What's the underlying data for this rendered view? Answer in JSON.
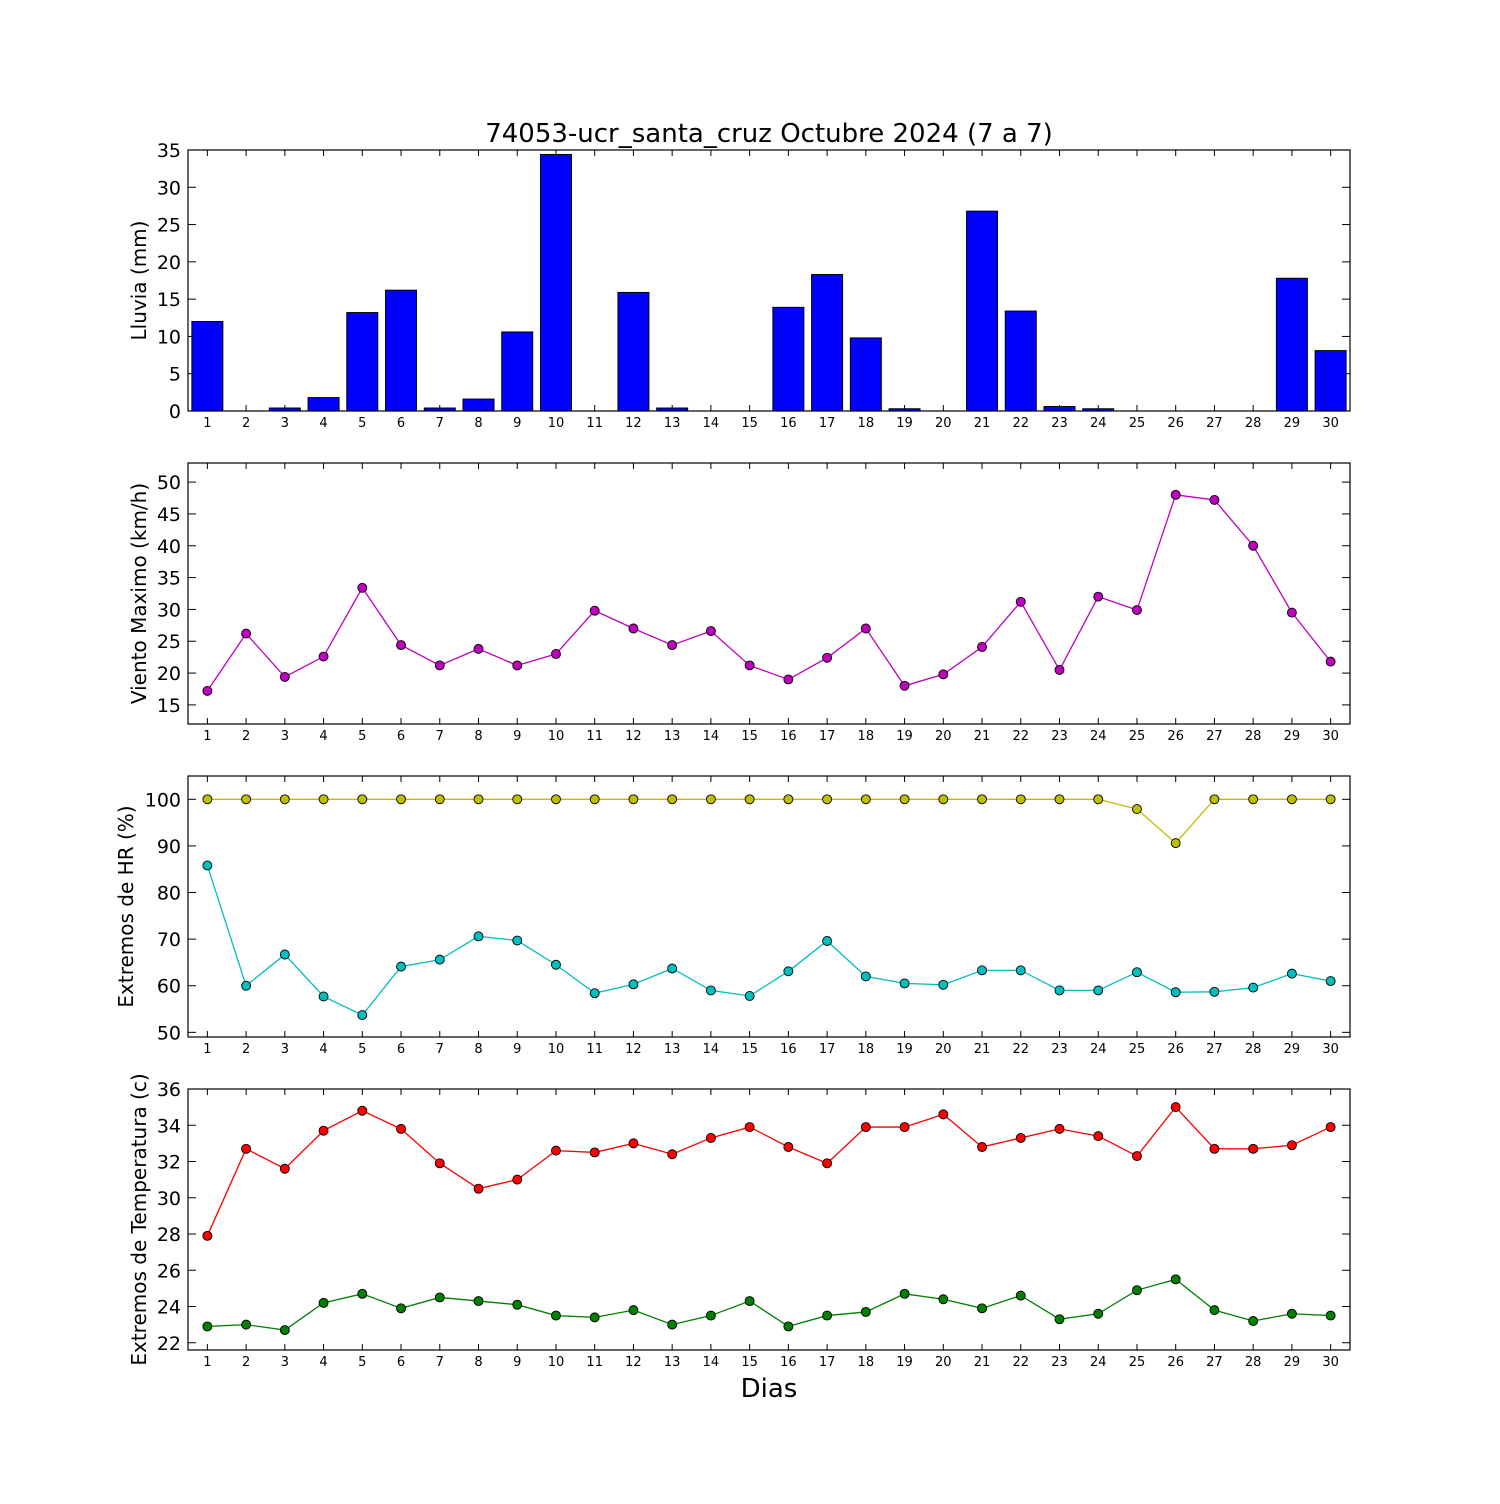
{
  "title": "74053-ucr_santa_cruz Octubre 2024  (7 a 7)",
  "xlabel": "Dias",
  "chart_data": [
    {
      "type": "bar",
      "ylabel": "Lluvia (mm)",
      "ylim": [
        0,
        35
      ],
      "yticks": [
        0,
        5,
        10,
        15,
        20,
        25,
        30,
        35
      ],
      "categories": [
        "1",
        "2",
        "3",
        "4",
        "5",
        "6",
        "7",
        "8",
        "9",
        "10",
        "11",
        "12",
        "13",
        "14",
        "15",
        "16",
        "17",
        "18",
        "19",
        "20",
        "21",
        "22",
        "23",
        "24",
        "25",
        "26",
        "27",
        "28",
        "29",
        "30"
      ],
      "series": [
        {
          "color": "#0000ff",
          "values": [
            12.0,
            0,
            0.4,
            1.8,
            13.2,
            16.2,
            0.4,
            1.6,
            10.6,
            34.4,
            0,
            15.9,
            0.4,
            0,
            0,
            13.9,
            18.3,
            9.8,
            0.3,
            0,
            26.8,
            13.4,
            0.6,
            0.3,
            0,
            0,
            0,
            0,
            17.8,
            8.1
          ]
        }
      ]
    },
    {
      "type": "line",
      "ylabel": "Viento Maximo (km/h)",
      "ylim": [
        12,
        53
      ],
      "yticks": [
        15,
        20,
        25,
        30,
        35,
        40,
        45,
        50
      ],
      "x": [
        1,
        2,
        3,
        4,
        5,
        6,
        7,
        8,
        9,
        10,
        11,
        12,
        13,
        14,
        15,
        16,
        17,
        18,
        19,
        20,
        21,
        22,
        23,
        24,
        25,
        26,
        27,
        28,
        29,
        30
      ],
      "series": [
        {
          "color": "#bf00bf",
          "values": [
            17.2,
            26.2,
            19.4,
            22.6,
            33.4,
            24.4,
            21.2,
            23.8,
            21.2,
            23.0,
            29.8,
            27.0,
            24.4,
            26.6,
            21.2,
            19.0,
            22.4,
            27.0,
            18.0,
            19.8,
            24.1,
            31.2,
            20.5,
            32.0,
            29.9,
            48.0,
            47.2,
            40.0,
            29.5,
            21.8
          ]
        }
      ]
    },
    {
      "type": "line",
      "ylabel": "Extremos de HR (%)",
      "ylim": [
        49,
        105
      ],
      "yticks": [
        50,
        60,
        70,
        80,
        90,
        100
      ],
      "x": [
        1,
        2,
        3,
        4,
        5,
        6,
        7,
        8,
        9,
        10,
        11,
        12,
        13,
        14,
        15,
        16,
        17,
        18,
        19,
        20,
        21,
        22,
        23,
        24,
        25,
        26,
        27,
        28,
        29,
        30
      ],
      "series": [
        {
          "color": "#bfbf00",
          "values": [
            100,
            100,
            100,
            100,
            100,
            100,
            100,
            100,
            100,
            100,
            100,
            100,
            100,
            100,
            100,
            100,
            100,
            100,
            100,
            100,
            100,
            100,
            100,
            100,
            97.9,
            90.6,
            100,
            100,
            100,
            100
          ]
        },
        {
          "color": "#00bfbf",
          "values": [
            85.8,
            60.0,
            66.7,
            57.7,
            53.7,
            64.1,
            65.6,
            70.6,
            69.7,
            64.5,
            58.4,
            60.3,
            63.7,
            59.0,
            57.8,
            63.1,
            69.6,
            62.0,
            60.5,
            60.2,
            63.3,
            63.3,
            59.0,
            59.0,
            62.9,
            58.6,
            58.7,
            59.6,
            62.6,
            61.0
          ]
        }
      ]
    },
    {
      "type": "line",
      "ylabel": "Extremos de Temperatura (c)",
      "ylim": [
        21.6,
        36
      ],
      "yticks": [
        22,
        24,
        26,
        28,
        30,
        32,
        34,
        36
      ],
      "x": [
        1,
        2,
        3,
        4,
        5,
        6,
        7,
        8,
        9,
        10,
        11,
        12,
        13,
        14,
        15,
        16,
        17,
        18,
        19,
        20,
        21,
        22,
        23,
        24,
        25,
        26,
        27,
        28,
        29,
        30
      ],
      "series": [
        {
          "color": "#ff0000",
          "values": [
            27.9,
            32.7,
            31.6,
            33.7,
            34.8,
            33.8,
            31.9,
            30.5,
            31.0,
            32.6,
            32.5,
            33.0,
            32.4,
            33.3,
            33.9,
            32.8,
            31.9,
            33.9,
            33.9,
            34.6,
            32.8,
            33.3,
            33.8,
            33.4,
            32.3,
            35.0,
            32.7,
            32.7,
            32.9,
            33.9
          ]
        },
        {
          "color": "#008000",
          "values": [
            22.9,
            23.0,
            22.7,
            24.2,
            24.7,
            23.9,
            24.5,
            24.3,
            24.1,
            23.5,
            23.4,
            23.8,
            23.0,
            23.5,
            24.3,
            22.9,
            23.5,
            23.7,
            24.7,
            24.4,
            23.9,
            24.6,
            23.3,
            23.6,
            24.9,
            25.5,
            23.8,
            23.2,
            23.6,
            23.5
          ]
        }
      ]
    }
  ]
}
